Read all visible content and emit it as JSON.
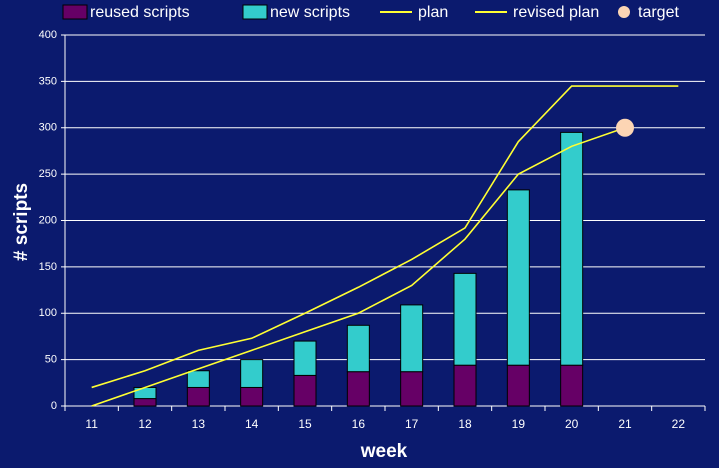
{
  "chart_data": {
    "type": "bar",
    "x_label": "week",
    "y_label": "# scripts",
    "categories": [
      "11",
      "12",
      "13",
      "14",
      "15",
      "16",
      "17",
      "18",
      "19",
      "20",
      "21",
      "22"
    ],
    "series": [
      {
        "name": "reused scripts",
        "type": "bar",
        "color": "#660066",
        "values": [
          null,
          8,
          20,
          20,
          33,
          37,
          37,
          44,
          44,
          44,
          null,
          null
        ]
      },
      {
        "name": "new scripts",
        "type": "bar",
        "color": "#33cccc",
        "values": [
          null,
          12,
          18,
          30,
          37,
          50,
          72,
          99,
          189,
          251,
          null,
          null
        ]
      },
      {
        "name": "plan",
        "type": "line",
        "color": "#ffff33",
        "values": [
          20,
          38,
          60,
          73,
          100,
          128,
          158,
          192,
          285,
          345,
          345,
          345
        ]
      },
      {
        "name": "revised plan",
        "type": "line",
        "color": "#ffff33",
        "values": [
          0,
          20,
          40,
          60,
          80,
          100,
          130,
          180,
          250,
          280,
          300,
          null
        ]
      },
      {
        "name": "target",
        "type": "scatter",
        "color": "#fcd5b4",
        "values": [
          null,
          null,
          null,
          null,
          null,
          null,
          null,
          null,
          null,
          null,
          300,
          null
        ]
      }
    ],
    "ylim": [
      0,
      400
    ],
    "yticks": [
      0,
      50,
      100,
      150,
      200,
      250,
      300,
      350,
      400
    ],
    "grid": true,
    "legend": "top"
  }
}
